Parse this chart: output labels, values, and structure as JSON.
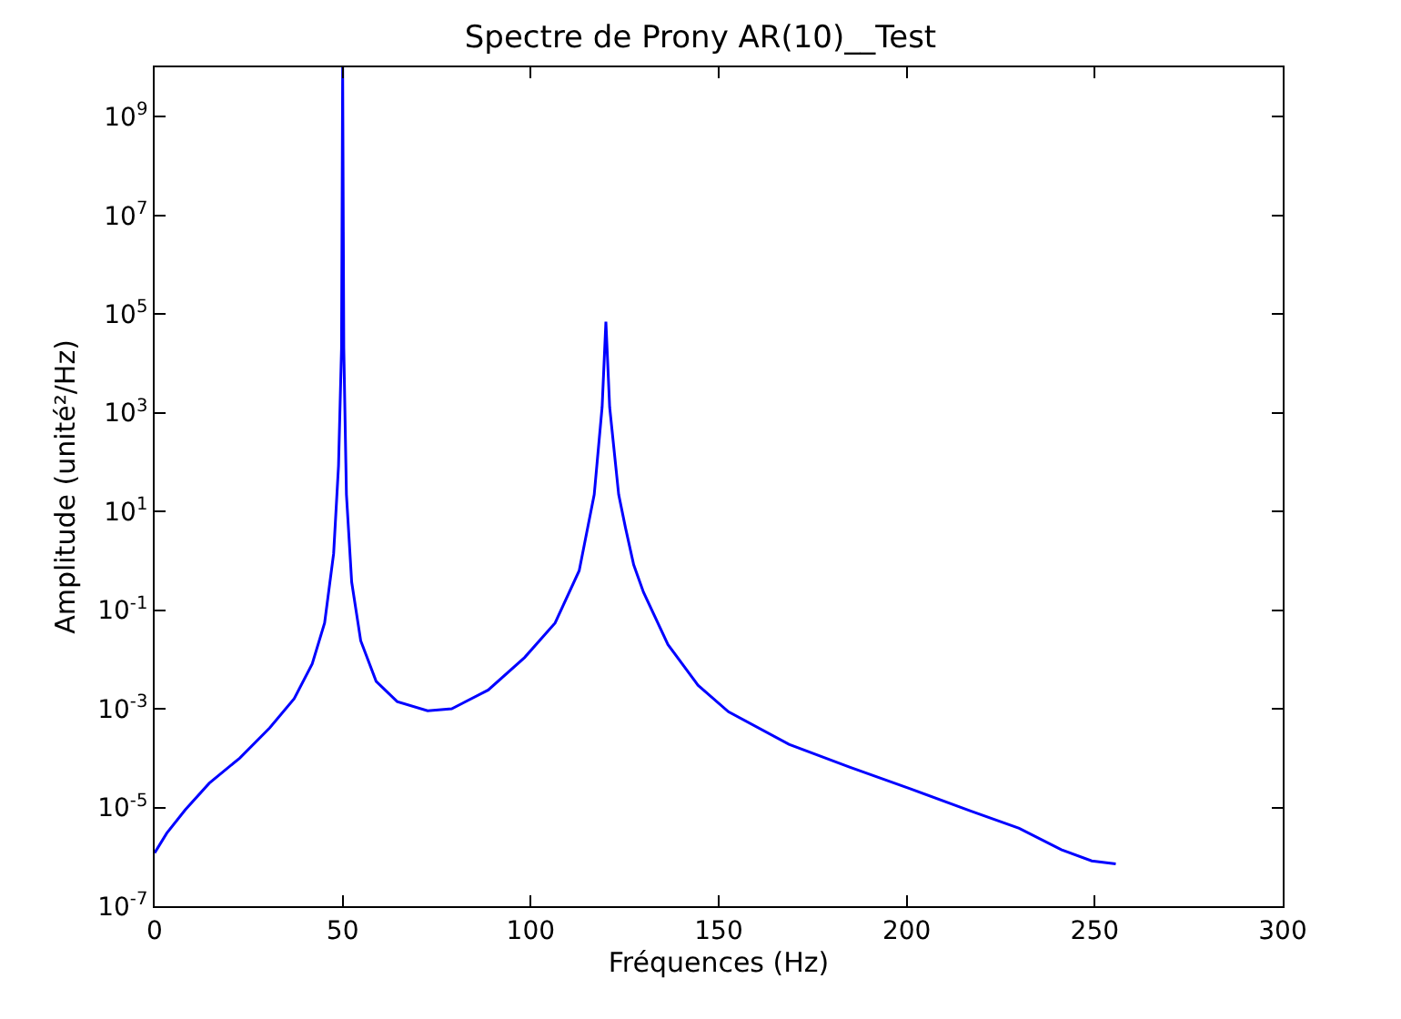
{
  "chart_data": {
    "type": "line",
    "title": "Spectre de Prony AR(10)__Test",
    "xlabel": "Fréquences (Hz)",
    "ylabel": "Amplitude (unité²/Hz)",
    "x": [
      0,
      3.2,
      8.1,
      14.5,
      22.6,
      30.6,
      37.1,
      41.9,
      45.2,
      47.6,
      48.9,
      49.7,
      50,
      50.3,
      51,
      52.4,
      54.8,
      58.9,
      64.5,
      72.6,
      79,
      88.7,
      98.4,
      106.5,
      112.9,
      116.9,
      119,
      120,
      121,
      123.4,
      125.2,
      127.4,
      130,
      136.5,
      144.5,
      152.6,
      168.7,
      184.8,
      200.9,
      217,
      229.9,
      241.1,
      249.2,
      255.6
    ],
    "series": [
      {
        "color": "#0000ff",
        "values": [
          1.2e-06,
          3e-06,
          8.9e-06,
          3.1e-05,
          0.0001,
          0.00041,
          0.0016,
          0.0081,
          0.055,
          1.4,
          85,
          20000.0,
          10000000000.0,
          20000.0,
          22,
          0.37,
          0.024,
          0.0036,
          0.0014,
          0.00091,
          0.001,
          0.0024,
          0.011,
          0.055,
          0.63,
          22,
          1300,
          70000.0,
          1300,
          22,
          4.7,
          0.83,
          0.23,
          0.02,
          0.003,
          0.00087,
          0.00019,
          6.6e-05,
          2.4e-05,
          8.5e-06,
          3.8e-06,
          1.4e-06,
          8.3e-07,
          7.2e-07
        ]
      }
    ],
    "log": "y",
    "xlim": [
      0,
      300
    ],
    "xticks": [
      0,
      50,
      100,
      150,
      200,
      250,
      300
    ],
    "ylim": [
      1e-07,
      10000000000.0
    ],
    "yticks": [
      {
        "value": 1e-07,
        "label": "10$^{-7}$"
      },
      {
        "value": 1e-05,
        "label": "10$^{-5}$"
      },
      {
        "value": 0.001,
        "label": "10$^{-3}$"
      },
      {
        "value": 0.1,
        "label": "10$^{-1}$"
      },
      {
        "value": 10,
        "label": "10$^{1}$"
      },
      {
        "value": 1000.0,
        "label": "10$^{3}$"
      },
      {
        "value": 100000.0,
        "label": "10$^{5}$"
      },
      {
        "value": 10000000.0,
        "label": "10$^{7}$"
      },
      {
        "value": 1000000000.0,
        "label": "10$^{9}$"
      }
    ],
    "line_style": "solid",
    "marker": "none"
  }
}
